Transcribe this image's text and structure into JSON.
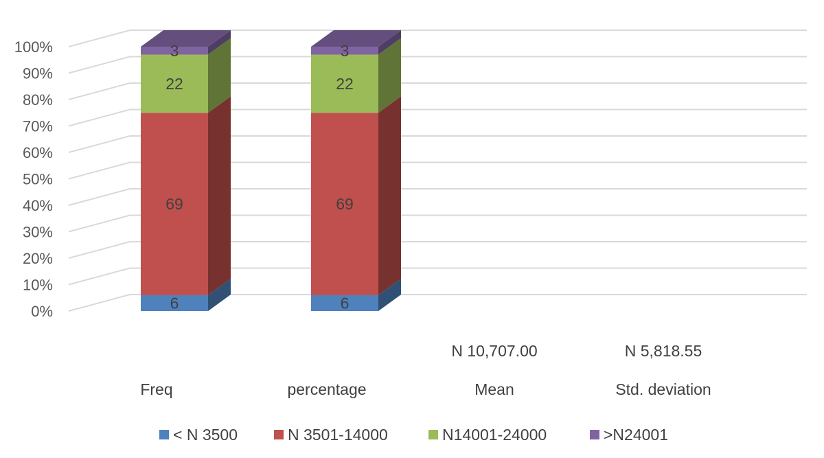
{
  "chart_data": {
    "type": "bar",
    "stacked": "percent",
    "three_d": true,
    "categories": [
      "Freq",
      "percentage",
      "Mean",
      "Std. deviation"
    ],
    "series": [
      {
        "name": "< N 3500",
        "values": [
          6,
          6,
          null,
          null
        ],
        "color": "#4F81BD"
      },
      {
        "name": "N 3501-14000",
        "values": [
          69,
          69,
          null,
          null
        ],
        "color": "#C0504D"
      },
      {
        "name": "N14001-24000",
        "values": [
          22,
          22,
          null,
          null
        ],
        "color": "#9BBB59"
      },
      {
        "name": ">N24001",
        "values": [
          3,
          3,
          null,
          null
        ],
        "color": "#8064A2"
      }
    ],
    "category_value_labels": [
      "",
      "",
      "N 10,707.00",
      "N 5,818.55"
    ],
    "y_ticks": [
      "0%",
      "10%",
      "20%",
      "30%",
      "40%",
      "50%",
      "60%",
      "70%",
      "80%",
      "90%",
      "100%"
    ],
    "ylim": [
      0,
      100
    ],
    "grid": true,
    "legend_position": "bottom"
  }
}
